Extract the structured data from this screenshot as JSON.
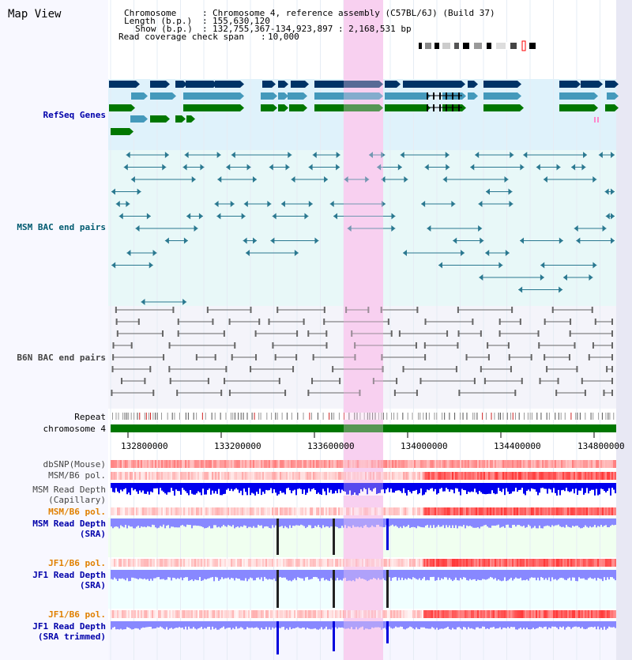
{
  "title": "Map View",
  "header": {
    "chromosome_label": "Chromosome",
    "chromosome_value": "Chromosome 4, reference assembly (C57BL/6J) (Build 37)",
    "length_label": "Length (b.p.)",
    "length_value": "155,630,120",
    "show_label": "Show (b.p.)",
    "show_value": "132,755,367-134,923,897 : 2,168,531 bp",
    "span_label": "Read coverage check span",
    "span_value": "10,000"
  },
  "tracks": {
    "refseq": "RefSeq Genes",
    "msm_bac": "MSM BAC end pairs",
    "b6n_bac": "B6N BAC end pairs",
    "repeat": "Repeat",
    "chromosome": "chromosome 4",
    "dbsnp": "dbSNP(Mouse)",
    "msm_b6_pol_1": "MSM/B6 pol.",
    "msm_depth_cap_1": "MSM Read Depth",
    "msm_depth_cap_2": "(Capillary)",
    "msm_b6_pol_2": "MSM/B6 pol.",
    "msm_depth_sra_1": "MSM Read Depth",
    "msm_depth_sra_2": "(SRA)",
    "jf1_b6_pol_1": "JF1/B6 pol.",
    "jf1_depth_sra_1": "JF1 Read Depth",
    "jf1_depth_sra_2": "(SRA)",
    "jf1_b6_pol_2": "JF1/B6 pol.",
    "jf1_depth_trim_1": "JF1 Read Depth",
    "jf1_depth_trim_2": "(SRA trimmed)"
  },
  "axis": {
    "ticks": [
      "132800000",
      "133200000",
      "133600000",
      "134000000",
      "134400000",
      "134800000"
    ]
  },
  "colors": {
    "label_blue": "#0000aa",
    "label_teal": "#005a70",
    "label_gray": "#444444",
    "label_orange": "#e08000",
    "highlight": "#f8d0f0"
  }
}
